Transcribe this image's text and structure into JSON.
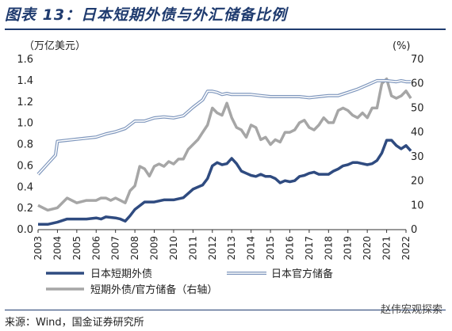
{
  "figure": {
    "title": "图表 13：日本短期外债与外汇储备比例",
    "source": "来源：Wind，国金证券研究所",
    "watermark": "赵伟宏观探索"
  },
  "colors": {
    "title": "#1f3b6f",
    "short_debt": "#2f4b80",
    "reserves_outer": "#7f97bd",
    "reserves_inner": "#ffffff",
    "ratio": "#a6a6a6"
  },
  "chart_data": {
    "type": "line",
    "title": "",
    "ylabel_left": "（万亿美元）",
    "ylabel_right": "(%)",
    "ylim_left": [
      0,
      1.6
    ],
    "ylim_right": [
      0,
      70
    ],
    "xlim": [
      2003,
      2022
    ],
    "grid": false,
    "legend_position": "bottom",
    "left_ticks": [
      "0.0",
      "0.2",
      "0.4",
      "0.6",
      "0.8",
      "1.0",
      "1.2",
      "1.4",
      "1.6"
    ],
    "right_ticks": [
      "0",
      "10",
      "20",
      "30",
      "40",
      "50",
      "60",
      "70"
    ],
    "x_ticks": [
      "2003",
      "2004",
      "2005",
      "2006",
      "2007",
      "2008",
      "2009",
      "2010",
      "2011",
      "2012",
      "2013",
      "2014",
      "2015",
      "2016",
      "2017",
      "2018",
      "2019",
      "2020",
      "2021",
      "2022"
    ],
    "series": [
      {
        "name": "日本短期外债",
        "axis": "left",
        "style": "dark",
        "x": [
          2003.0,
          2003.5,
          2004.0,
          2004.5,
          2005.0,
          2005.5,
          2006.0,
          2006.25,
          2006.5,
          2007.0,
          2007.25,
          2007.5,
          2007.75,
          2008.0,
          2008.5,
          2009.0,
          2009.5,
          2010.0,
          2010.5,
          2011.0,
          2011.5,
          2011.75,
          2012.0,
          2012.25,
          2012.5,
          2012.75,
          2013.0,
          2013.25,
          2013.5,
          2013.75,
          2014.0,
          2014.25,
          2014.5,
          2014.75,
          2015.0,
          2015.25,
          2015.5,
          2015.75,
          2016.0,
          2016.25,
          2016.5,
          2016.75,
          2017.0,
          2017.25,
          2017.5,
          2017.75,
          2018.0,
          2018.25,
          2018.5,
          2018.75,
          2019.0,
          2019.25,
          2019.5,
          2019.75,
          2020.0,
          2020.25,
          2020.5,
          2020.75,
          2021.0,
          2021.25,
          2021.5,
          2021.75,
          2022.0,
          2022.25
        ],
        "y": [
          0.05,
          0.05,
          0.07,
          0.1,
          0.1,
          0.1,
          0.11,
          0.1,
          0.12,
          0.11,
          0.1,
          0.08,
          0.13,
          0.19,
          0.26,
          0.26,
          0.28,
          0.28,
          0.3,
          0.38,
          0.42,
          0.48,
          0.6,
          0.63,
          0.61,
          0.62,
          0.67,
          0.62,
          0.55,
          0.53,
          0.51,
          0.5,
          0.52,
          0.5,
          0.5,
          0.48,
          0.44,
          0.46,
          0.45,
          0.46,
          0.5,
          0.51,
          0.53,
          0.54,
          0.52,
          0.52,
          0.52,
          0.55,
          0.57,
          0.6,
          0.61,
          0.63,
          0.63,
          0.62,
          0.61,
          0.62,
          0.65,
          0.72,
          0.84,
          0.84,
          0.79,
          0.76,
          0.79,
          0.74
        ]
      },
      {
        "name": "日本官方储备",
        "axis": "left",
        "style": "double",
        "x": [
          2003.0,
          2003.5,
          2003.9,
          2004.0,
          2004.5,
          2005.0,
          2005.5,
          2006.0,
          2006.5,
          2007.0,
          2007.5,
          2008.0,
          2008.5,
          2009.0,
          2009.5,
          2010.0,
          2010.5,
          2011.0,
          2011.5,
          2011.75,
          2012.0,
          2012.25,
          2012.5,
          2012.75,
          2013.0,
          2013.5,
          2014.0,
          2014.5,
          2015.0,
          2015.5,
          2016.0,
          2016.5,
          2017.0,
          2017.5,
          2018.0,
          2018.5,
          2019.0,
          2019.5,
          2020.0,
          2020.5,
          2021.0,
          2021.5,
          2021.75,
          2022.0,
          2022.25
        ],
        "y": [
          0.52,
          0.62,
          0.7,
          0.83,
          0.84,
          0.85,
          0.86,
          0.87,
          0.9,
          0.92,
          0.95,
          1.02,
          1.02,
          1.05,
          1.06,
          1.05,
          1.07,
          1.15,
          1.22,
          1.3,
          1.3,
          1.29,
          1.27,
          1.28,
          1.27,
          1.27,
          1.27,
          1.26,
          1.25,
          1.25,
          1.25,
          1.25,
          1.24,
          1.25,
          1.26,
          1.26,
          1.29,
          1.32,
          1.36,
          1.4,
          1.4,
          1.39,
          1.4,
          1.39,
          1.39
        ]
      },
      {
        "name": "短期外债/官方储备（右轴）",
        "axis": "right",
        "style": "gray",
        "x": [
          2003.0,
          2003.5,
          2004.0,
          2004.5,
          2005.0,
          2005.5,
          2006.0,
          2006.25,
          2006.5,
          2006.75,
          2007.0,
          2007.25,
          2007.5,
          2007.75,
          2008.0,
          2008.25,
          2008.5,
          2008.75,
          2009.0,
          2009.25,
          2009.5,
          2009.75,
          2010.0,
          2010.25,
          2010.5,
          2010.75,
          2011.0,
          2011.25,
          2011.5,
          2011.75,
          2012.0,
          2012.25,
          2012.5,
          2012.75,
          2013.0,
          2013.25,
          2013.5,
          2013.75,
          2014.0,
          2014.25,
          2014.5,
          2014.75,
          2015.0,
          2015.25,
          2015.5,
          2015.75,
          2016.0,
          2016.25,
          2016.5,
          2016.75,
          2017.0,
          2017.25,
          2017.5,
          2017.75,
          2018.0,
          2018.25,
          2018.5,
          2018.75,
          2019.0,
          2019.25,
          2019.5,
          2019.75,
          2020.0,
          2020.25,
          2020.5,
          2020.75,
          2021.0,
          2021.25,
          2021.5,
          2021.75,
          2022.0,
          2022.25
        ],
        "y": [
          10,
          8,
          9,
          13,
          11,
          12,
          12,
          13,
          13,
          12,
          13,
          12,
          11,
          16,
          18,
          26,
          25,
          22,
          26,
          27,
          26,
          28,
          27,
          29,
          29,
          33,
          35,
          37,
          40,
          43,
          50,
          48,
          47,
          52,
          46,
          42,
          41,
          38,
          43,
          42,
          37,
          38,
          35,
          37,
          36,
          40,
          40,
          41,
          44,
          45,
          42,
          41,
          43,
          46,
          44,
          44,
          49,
          50,
          49,
          47,
          46,
          48,
          46,
          50,
          50,
          60,
          62,
          55,
          54,
          55,
          57,
          54
        ]
      }
    ]
  },
  "legend": {
    "short_debt": "日本短期外债",
    "reserves": "日本官方储备",
    "ratio": "短期外债/官方储备（右轴）"
  }
}
